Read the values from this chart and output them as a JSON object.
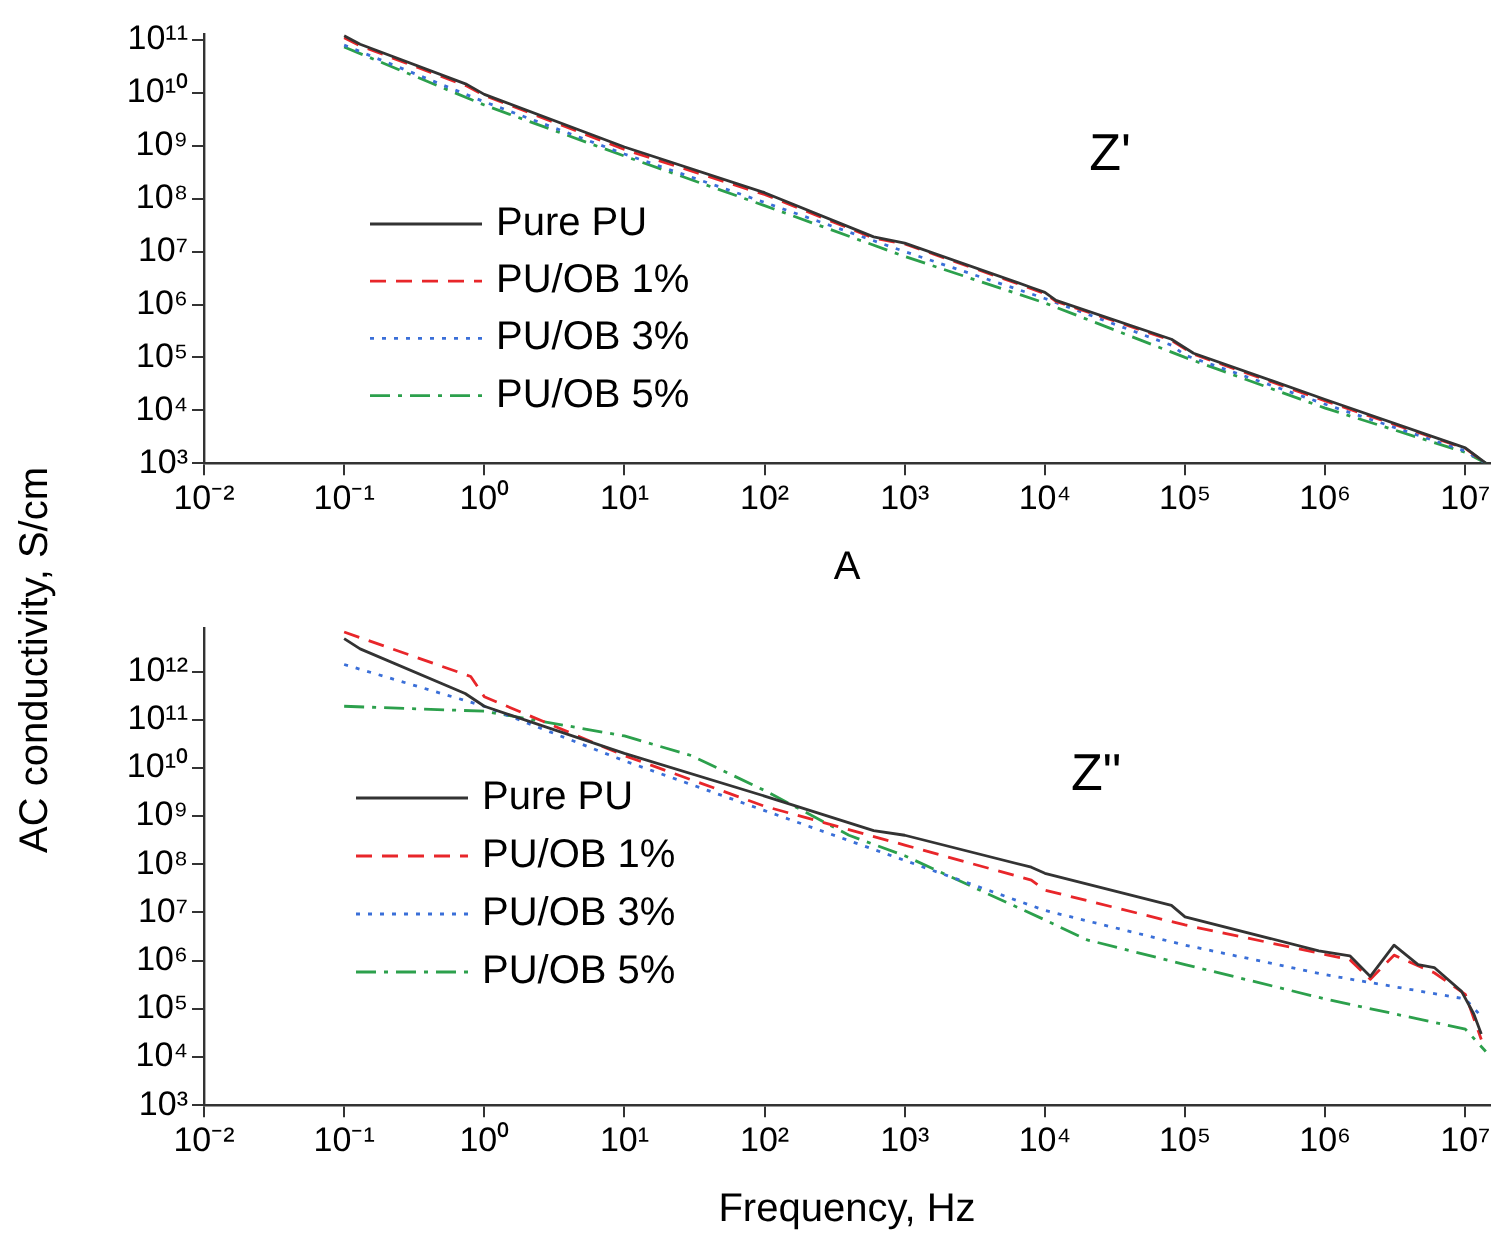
{
  "chart_data": [
    {
      "type": "line",
      "xlabel": "A",
      "ylabel": "AC conductivity, S/cm",
      "annotations": [
        "Z'"
      ],
      "log": "xy",
      "grid": false,
      "legend": "left",
      "marker": "none",
      "xlim": [
        0.01,
        15000000
      ],
      "ylim": [
        1000,
        130000000000
      ],
      "xticks": [
        {
          "value": 0.01,
          "label": "10⁻²"
        },
        {
          "value": 0.1,
          "label": "10⁻¹"
        },
        {
          "value": 1,
          "label": "10⁰"
        },
        {
          "value": 10,
          "label": "10¹"
        },
        {
          "value": 100,
          "label": "10²"
        },
        {
          "value": 1000,
          "label": "10³"
        },
        {
          "value": 10000,
          "label": "10⁴"
        },
        {
          "value": 100000,
          "label": "10⁵"
        },
        {
          "value": 1000000,
          "label": "10⁶"
        },
        {
          "value": 10000000,
          "label": "10⁷"
        }
      ],
      "yticks": [
        {
          "value": 1000,
          "label": "10³"
        },
        {
          "value": 10000,
          "label": "10⁴"
        },
        {
          "value": 100000,
          "label": "10⁵"
        },
        {
          "value": 1000000,
          "label": "10⁶"
        },
        {
          "value": 10000000,
          "label": "10⁷"
        },
        {
          "value": 100000000,
          "label": "10⁸"
        },
        {
          "value": 1000000000,
          "label": "10⁹"
        },
        {
          "value": 10000000000,
          "label": "10¹⁰"
        },
        {
          "value": 100000000000,
          "label": "10¹¹"
        }
      ],
      "series": [
        {
          "name": "Pure PU",
          "color": "#333333",
          "line_style": "solid",
          "x": [
            0.1,
            0.13,
            0.75,
            1,
            10,
            100,
            600,
            1000,
            8000,
            10000,
            12000,
            80000,
            115000,
            1000000,
            10000000,
            14000000
          ],
          "values": [
            120000000000,
            83000000000,
            14500000000,
            9400000000,
            950000000,
            130000000,
            19000000,
            14500000,
            2100000,
            1700000,
            1200000,
            220000,
            120000,
            16000,
            1950,
            1000
          ]
        },
        {
          "name": "PU/OB 1%",
          "color": "#e8262a",
          "line_style": "dashed",
          "x": [
            0.1,
            0.13,
            0.75,
            1,
            10,
            100,
            600,
            1000,
            8000,
            10000,
            12000,
            80000,
            115000,
            1000000,
            10000000,
            14000000
          ],
          "values": [
            110000000000,
            78000000000,
            13500000000,
            9000000000,
            850000000,
            120000000,
            18000000,
            14000000,
            2000000,
            1600000,
            1150000,
            210000,
            115000,
            15000,
            1900,
            1000
          ]
        },
        {
          "name": "PU/OB 3%",
          "color": "#3a6fd8",
          "line_style": "dotted",
          "x": [
            0.1,
            1,
            10,
            100,
            1000,
            10000,
            80000,
            100000,
            1000000,
            10000000,
            14000000
          ],
          "values": [
            80000000000,
            6800000000,
            700000000,
            85000000,
            10000000,
            1300000,
            170000,
            110000,
            13000,
            1700,
            1000
          ]
        },
        {
          "name": "PU/OB 5%",
          "color": "#2ca04c",
          "line_style": "dashdot",
          "x": [
            0.1,
            1,
            10,
            100,
            1000,
            10000,
            100000,
            1000000,
            10000000,
            14000000
          ],
          "values": [
            74000000000,
            5900000000,
            640000000,
            74000000,
            8100000,
            1070000,
            100000,
            11000,
            1600,
            1000
          ]
        }
      ]
    },
    {
      "type": "line",
      "xlabel": "Frequency, Hz",
      "annotations": [
        "Z\""
      ],
      "log": "xy",
      "grid": false,
      "legend": "left",
      "marker": "none",
      "xlim": [
        0.01,
        15000000
      ],
      "ylim": [
        1000,
        8000000000000
      ],
      "xticks": [
        {
          "value": 0.01,
          "label": "10⁻²"
        },
        {
          "value": 0.1,
          "label": "10⁻¹"
        },
        {
          "value": 1,
          "label": "10⁰"
        },
        {
          "value": 10,
          "label": "10¹"
        },
        {
          "value": 100,
          "label": "10²"
        },
        {
          "value": 1000,
          "label": "10³"
        },
        {
          "value": 10000,
          "label": "10⁴"
        },
        {
          "value": 100000,
          "label": "10⁵"
        },
        {
          "value": 1000000,
          "label": "10⁶"
        },
        {
          "value": 10000000,
          "label": "10⁷"
        }
      ],
      "yticks": [
        {
          "value": 1000,
          "label": "10³"
        },
        {
          "value": 10000,
          "label": "10⁴"
        },
        {
          "value": 100000,
          "label": "10⁵"
        },
        {
          "value": 1000000,
          "label": "10⁶"
        },
        {
          "value": 10000000,
          "label": "10⁷"
        },
        {
          "value": 100000000,
          "label": "10⁸"
        },
        {
          "value": 1000000000,
          "label": "10⁹"
        },
        {
          "value": 10000000000,
          "label": "10¹⁰"
        },
        {
          "value": 100000000000,
          "label": "10¹¹"
        },
        {
          "value": 1000000000000,
          "label": "10¹²"
        }
      ],
      "series": [
        {
          "name": "Pure PU",
          "color": "#333333",
          "line_style": "solid",
          "x": [
            0.1,
            0.13,
            0.73,
            1,
            10,
            100,
            600,
            1000,
            8000,
            10000,
            80000,
            100000,
            900000,
            1500000,
            2100000,
            3100000,
            4600000,
            6000000,
            9400000,
            11500000,
            13000000
          ],
          "values": [
            4800000000000,
            2950000000000,
            350000000000,
            190000000000,
            20000000000,
            2600000000,
            500000000,
            400000000,
            87000000,
            65000000,
            14000000,
            8100000,
            1600000,
            1260000,
            470000,
            2100000,
            830000,
            720000,
            230000,
            78000,
            30000
          ]
        },
        {
          "name": "PU/OB 1%",
          "color": "#e8262a",
          "line_style": "dashed",
          "x": [
            0.1,
            0.8,
            1,
            10,
            100,
            1000,
            8000,
            10000,
            100000,
            1500000,
            2100000,
            3100000,
            6000000,
            10000000,
            13000000
          ],
          "values": [
            6600000000000,
            790000000000,
            300000000000,
            18000000000,
            1600000000,
            250000000,
            47000000,
            29000000,
            5500000,
            1050000,
            410000,
            1300000,
            560000,
            200000,
            23000
          ]
        },
        {
          "name": "PU/OB 3%",
          "color": "#3a6fd8",
          "line_style": "dotted",
          "x": [
            0.1,
            1,
            10,
            100,
            1000,
            10000,
            100000,
            1000000,
            10000000,
            13000000
          ],
          "values": [
            1400000000000,
            190000000000,
            14000000000,
            1300000000,
            120000000,
            11000000,
            2100000,
            510000,
            160000,
            70000
          ]
        },
        {
          "name": "PU/OB 5%",
          "color": "#2ca04c",
          "line_style": "dashdot",
          "x": [
            0.1,
            1,
            10,
            30,
            100,
            400,
            1000,
            10000,
            20000,
            100000,
            1000000,
            10000000,
            14000000
          ],
          "values": [
            190000000000,
            150000000000,
            46000000000,
            18000000000,
            3400000000,
            400000000,
            150000000,
            7000000,
            2700000,
            830000,
            160000,
            38000,
            13000
          ]
        }
      ]
    }
  ]
}
